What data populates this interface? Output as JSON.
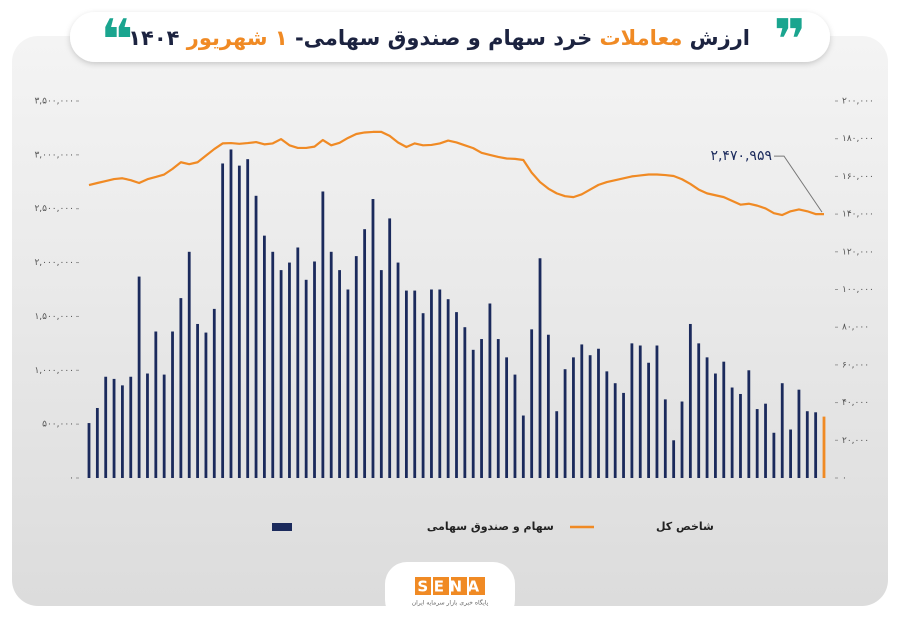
{
  "chart_data": {
    "type": "bar_line",
    "title_parts": [
      "ارزش",
      "معاملات",
      "خرد سهام و صندوق سهامی-",
      "۱ شهریور",
      "۱۴۰۴"
    ],
    "categories": [
      null,
      null,
      null,
      null,
      null,
      null,
      null,
      null,
      null,
      null,
      null,
      null,
      null,
      null,
      null,
      null,
      null,
      null,
      null,
      null,
      null,
      null,
      null,
      null,
      null,
      null,
      null,
      null,
      null,
      null,
      null,
      null,
      null,
      null,
      null,
      null,
      null,
      null,
      null,
      null,
      null,
      null,
      null,
      null,
      null,
      null,
      null,
      null,
      null,
      null,
      null,
      null,
      null,
      null,
      null,
      null,
      null,
      null,
      null,
      null,
      null,
      null,
      null,
      null,
      null,
      null,
      null,
      null,
      null,
      null,
      null,
      null,
      null,
      null,
      null,
      null,
      null,
      null,
      null,
      null,
      null,
      null,
      null,
      null,
      null,
      null,
      null,
      null,
      null
    ],
    "series": [
      {
        "name": "سهام و صندوق سهامی",
        "type": "bar",
        "color": "#1b2a5c",
        "last_bar_color": "#f08a24",
        "values": [
          510000,
          650000,
          940000,
          920000,
          860000,
          940000,
          1870000,
          970000,
          1360000,
          960000,
          1360000,
          1670000,
          2100000,
          1430000,
          1350000,
          1570000,
          2920000,
          3050000,
          2900000,
          2960000,
          2620000,
          2250000,
          2100000,
          1930000,
          2000000,
          2140000,
          1840000,
          2010000,
          2660000,
          2100000,
          1930000,
          1750000,
          2060000,
          2310000,
          2590000,
          1930000,
          2410000,
          2000000,
          1740000,
          1740000,
          1530000,
          1750000,
          1750000,
          1660000,
          1540000,
          1400000,
          1190000,
          1290000,
          1620000,
          1290000,
          1120000,
          960000,
          580000,
          1380000,
          2040000,
          1330000,
          620000,
          1010000,
          1120000,
          1240000,
          1140000,
          1200000,
          990000,
          880000,
          790000,
          1250000,
          1230000,
          1070000,
          1230000,
          730000,
          350000,
          710000,
          1430000,
          1250000,
          1120000,
          970000,
          1080000,
          840000,
          780000,
          1000000,
          640000,
          690000,
          420000,
          880000,
          450000,
          820000,
          620000,
          610000,
          570000
        ]
      },
      {
        "name": "شاخص کل",
        "type": "line",
        "axis": "y2",
        "color": "#f08a24",
        "values": [
          155400,
          156500,
          157500,
          158600,
          159000,
          158000,
          156500,
          158500,
          159700,
          161000,
          164000,
          167500,
          166500,
          167500,
          171000,
          174500,
          177500,
          177700,
          177300,
          177700,
          178200,
          177000,
          177500,
          179800,
          176500,
          175100,
          175100,
          175800,
          179300,
          176500,
          177800,
          180400,
          182500,
          183300,
          183600,
          183600,
          181500,
          178000,
          175600,
          177500,
          176500,
          176700,
          177500,
          179000,
          178000,
          176500,
          175000,
          172500,
          171400,
          170300,
          169500,
          169300,
          168700,
          162000,
          157000,
          153500,
          151000,
          149500,
          149000,
          150500,
          153000,
          155500,
          157000,
          158000,
          159000,
          160000,
          160500,
          161000,
          161000,
          160700,
          160200,
          158500,
          156000,
          153000,
          151000,
          150000,
          149000,
          147000,
          145000,
          145500,
          144500,
          143000,
          140500,
          139500,
          141500,
          142500,
          141500,
          140000,
          140000
        ]
      }
    ],
    "ylim": [
      0,
      3500000
    ],
    "yticks": [
      {
        "value": 0,
        "label": "۰"
      },
      {
        "value": 500000,
        "label": "۵۰۰,۰۰۰"
      },
      {
        "value": 1000000,
        "label": "۱,۰۰۰,۰۰۰"
      },
      {
        "value": 1500000,
        "label": "۱,۵۰۰,۰۰۰"
      },
      {
        "value": 2000000,
        "label": "۲,۰۰۰,۰۰۰"
      },
      {
        "value": 2500000,
        "label": "۲,۵۰۰,۰۰۰"
      },
      {
        "value": 3000000,
        "label": "۳,۰۰۰,۰۰۰"
      },
      {
        "value": 3500000,
        "label": "۳,۵۰۰,۰۰۰"
      }
    ],
    "y2lim": [
      0,
      200000
    ],
    "y2ticks": [
      {
        "value": 0,
        "label": "۰"
      },
      {
        "value": 20000,
        "label": "۲۰,۰۰۰"
      },
      {
        "value": 40000,
        "label": "۴۰,۰۰۰"
      },
      {
        "value": 60000,
        "label": "۶۰,۰۰۰"
      },
      {
        "value": 80000,
        "label": "۸۰,۰۰۰"
      },
      {
        "value": 100000,
        "label": "۱۰۰,۰۰۰"
      },
      {
        "value": 120000,
        "label": "۱۲۰,۰۰۰"
      },
      {
        "value": 140000,
        "label": "۱۴۰,۰۰۰"
      },
      {
        "value": 160000,
        "label": "۱۶۰,۰۰۰"
      },
      {
        "value": 180000,
        "label": "۱۸۰,۰۰۰"
      },
      {
        "value": 200000,
        "label": "۲۰۰,۰۰۰"
      }
    ],
    "annotation": "۲,۴۷۰,۹۵۹",
    "logo": "SENA",
    "logo_caption": "پایگاه خبری بازار سرمایه ایران"
  }
}
